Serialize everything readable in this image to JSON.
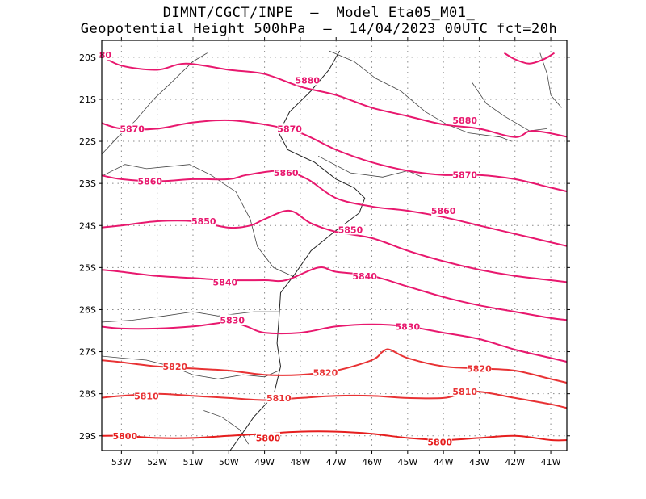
{
  "title_line1": "DIMNT/CGCT/INPE  –  Model Eta05_M01_",
  "title_line2": "Geopotential Height 500hPa  –  14/04/2023 00UTC fct=20h",
  "lat_ticks": [
    "20S",
    "21S",
    "22S",
    "23S",
    "24S",
    "25S",
    "26S",
    "27S",
    "28S",
    "29S"
  ],
  "lon_ticks": [
    "53W",
    "52W",
    "51W",
    "50W",
    "49W",
    "48W",
    "47W",
    "46W",
    "45W",
    "44W",
    "43W",
    "42W",
    "41W"
  ],
  "contours": [
    {
      "value": "5880",
      "color": "#e8186e",
      "pts": [
        [
          -53.6,
          19.95
        ],
        [
          -53,
          20.2
        ],
        [
          -52,
          20.3
        ],
        [
          -51.2,
          20.15
        ],
        [
          -50,
          20.3
        ],
        [
          -49,
          20.4
        ],
        [
          -48,
          20.7
        ],
        [
          -47,
          20.9
        ],
        [
          -46,
          21.2
        ],
        [
          -45,
          21.4
        ],
        [
          -44,
          21.6
        ],
        [
          -43,
          21.7
        ],
        [
          -42,
          21.9
        ],
        [
          -41.5,
          21.75
        ],
        [
          -40.5,
          21.9
        ]
      ]
    },
    {
      "value": "5870",
      "color": "#e8186e",
      "pts": [
        [
          -53.6,
          21.55
        ],
        [
          -53,
          21.7
        ],
        [
          -52,
          21.7
        ],
        [
          -51,
          21.55
        ],
        [
          -50,
          21.5
        ],
        [
          -49,
          21.6
        ],
        [
          -48,
          21.8
        ],
        [
          -47,
          22.2
        ],
        [
          -46,
          22.5
        ],
        [
          -45,
          22.7
        ],
        [
          -44,
          22.8
        ],
        [
          -43,
          22.8
        ],
        [
          -42,
          22.9
        ],
        [
          -41,
          23.1
        ],
        [
          -40.5,
          23.2
        ]
      ]
    },
    {
      "value": "5860",
      "color": "#e8186e",
      "pts": [
        [
          -53.6,
          22.8
        ],
        [
          -53,
          22.9
        ],
        [
          -52,
          22.95
        ],
        [
          -51,
          22.9
        ],
        [
          -50,
          22.9
        ],
        [
          -49.5,
          22.8
        ],
        [
          -48.5,
          22.7
        ],
        [
          -47.8,
          22.9
        ],
        [
          -47,
          23.35
        ],
        [
          -46,
          23.55
        ],
        [
          -45,
          23.65
        ],
        [
          -44,
          23.8
        ],
        [
          -43,
          24
        ],
        [
          -42,
          24.2
        ],
        [
          -41,
          24.4
        ],
        [
          -40.5,
          24.5
        ]
      ]
    },
    {
      "value": "5850",
      "color": "#e8186e",
      "pts": [
        [
          -53.6,
          24.05
        ],
        [
          -53,
          24
        ],
        [
          -52,
          23.9
        ],
        [
          -51,
          23.9
        ],
        [
          -50,
          24.05
        ],
        [
          -49.4,
          24
        ],
        [
          -49,
          23.85
        ],
        [
          -48.3,
          23.65
        ],
        [
          -47.7,
          23.95
        ],
        [
          -47,
          24.15
        ],
        [
          -46,
          24.3
        ],
        [
          -45,
          24.6
        ],
        [
          -44,
          24.85
        ],
        [
          -43,
          25.05
        ],
        [
          -42,
          25.2
        ],
        [
          -41,
          25.3
        ],
        [
          -40.5,
          25.35
        ]
      ]
    },
    {
      "value": "5840",
      "color": "#e8186e",
      "pts": [
        [
          -53.6,
          25.05
        ],
        [
          -53,
          25.1
        ],
        [
          -52,
          25.2
        ],
        [
          -51,
          25.25
        ],
        [
          -50,
          25.3
        ],
        [
          -49,
          25.3
        ],
        [
          -48.4,
          25.3
        ],
        [
          -47.5,
          25
        ],
        [
          -47,
          25.1
        ],
        [
          -46,
          25.2
        ],
        [
          -45,
          25.45
        ],
        [
          -44,
          25.7
        ],
        [
          -43,
          25.9
        ],
        [
          -42,
          26.05
        ],
        [
          -41,
          26.2
        ],
        [
          -40.5,
          26.25
        ]
      ]
    },
    {
      "value": "5830",
      "color": "#e8186e",
      "pts": [
        [
          -53.6,
          26.4
        ],
        [
          -53,
          26.45
        ],
        [
          -52,
          26.45
        ],
        [
          -51,
          26.4
        ],
        [
          -50,
          26.3
        ],
        [
          -49.5,
          26.4
        ],
        [
          -49,
          26.55
        ],
        [
          -48,
          26.55
        ],
        [
          -47,
          26.4
        ],
        [
          -46,
          26.35
        ],
        [
          -45,
          26.4
        ],
        [
          -44,
          26.55
        ],
        [
          -43,
          26.7
        ],
        [
          -42,
          26.95
        ],
        [
          -41,
          27.15
        ],
        [
          -40.5,
          27.25
        ]
      ]
    },
    {
      "value": "5820",
      "color": "#e83234",
      "pts": [
        [
          -53.6,
          27.2
        ],
        [
          -53,
          27.25
        ],
        [
          -52,
          27.35
        ],
        [
          -51,
          27.4
        ],
        [
          -50,
          27.45
        ],
        [
          -49,
          27.55
        ],
        [
          -48,
          27.55
        ],
        [
          -47,
          27.45
        ],
        [
          -46,
          27.2
        ],
        [
          -45.7,
          27
        ],
        [
          -45.5,
          26.95
        ],
        [
          -45,
          27.15
        ],
        [
          -44,
          27.35
        ],
        [
          -43,
          27.4
        ],
        [
          -42,
          27.45
        ],
        [
          -41,
          27.65
        ],
        [
          -40.5,
          27.75
        ]
      ]
    },
    {
      "value": "5810",
      "color": "#e83234",
      "pts": [
        [
          -53.6,
          28.1
        ],
        [
          -53,
          28.05
        ],
        [
          -52,
          28
        ],
        [
          -51,
          28.05
        ],
        [
          -50,
          28.1
        ],
        [
          -49,
          28.15
        ],
        [
          -48,
          28.1
        ],
        [
          -47,
          28.05
        ],
        [
          -46,
          28.05
        ],
        [
          -45,
          28.1
        ],
        [
          -44,
          28.1
        ],
        [
          -43.5,
          28
        ],
        [
          -43,
          27.95
        ],
        [
          -42,
          28.1
        ],
        [
          -41,
          28.25
        ],
        [
          -40.5,
          28.35
        ]
      ]
    },
    {
      "value": "5800",
      "color": "#e61e1e",
      "pts": [
        [
          -53.6,
          29
        ],
        [
          -53,
          29
        ],
        [
          -52,
          29.05
        ],
        [
          -51,
          29.05
        ],
        [
          -50,
          29
        ],
        [
          -49,
          28.95
        ],
        [
          -48,
          28.9
        ],
        [
          -47,
          28.9
        ],
        [
          -46,
          28.95
        ],
        [
          -45,
          29.05
        ],
        [
          -44,
          29.1
        ],
        [
          -43,
          29.05
        ],
        [
          -42,
          29
        ],
        [
          -41,
          29.1
        ],
        [
          -40.5,
          29.1
        ]
      ]
    },
    {
      "value": "",
      "color": "#e8186e",
      "pts": [
        [
          -42.3,
          19.9
        ],
        [
          -42,
          20.05
        ],
        [
          -41.6,
          20.15
        ],
        [
          -41.2,
          20.05
        ],
        [
          -40.9,
          19.9
        ]
      ]
    }
  ],
  "contour_labels": [
    {
      "text": "80",
      "color": "#e8186e",
      "lon": -53.45,
      "lat": 19.95
    },
    {
      "text": "5880",
      "color": "#e8186e",
      "lon": -47.8,
      "lat": 20.55
    },
    {
      "text": "5880",
      "color": "#e8186e",
      "lon": -43.4,
      "lat": 21.5
    },
    {
      "text": "5870",
      "color": "#e8186e",
      "lon": -52.7,
      "lat": 21.7
    },
    {
      "text": "5870",
      "color": "#e8186e",
      "lon": -48.3,
      "lat": 21.7
    },
    {
      "text": "5870",
      "color": "#e8186e",
      "lon": -43.4,
      "lat": 22.8
    },
    {
      "text": "5860",
      "color": "#e8186e",
      "lon": -52.2,
      "lat": 22.95
    },
    {
      "text": "5860",
      "color": "#e8186e",
      "lon": -48.4,
      "lat": 22.75
    },
    {
      "text": "5860",
      "color": "#e8186e",
      "lon": -44,
      "lat": 23.65
    },
    {
      "text": "5850",
      "color": "#e8186e",
      "lon": -50.7,
      "lat": 23.9
    },
    {
      "text": "5850",
      "color": "#e8186e",
      "lon": -46.6,
      "lat": 24.1
    },
    {
      "text": "5840",
      "color": "#e8186e",
      "lon": -50.1,
      "lat": 25.35
    },
    {
      "text": "5840",
      "color": "#e8186e",
      "lon": -46.2,
      "lat": 25.2
    },
    {
      "text": "5830",
      "color": "#e8186e",
      "lon": -49.9,
      "lat": 26.25
    },
    {
      "text": "5830",
      "color": "#e8186e",
      "lon": -45,
      "lat": 26.4
    },
    {
      "text": "5820",
      "color": "#e83234",
      "lon": -51.5,
      "lat": 27.35
    },
    {
      "text": "5820",
      "color": "#e83234",
      "lon": -47.3,
      "lat": 27.5
    },
    {
      "text": "5820",
      "color": "#e83234",
      "lon": -43,
      "lat": 27.4
    },
    {
      "text": "5810",
      "color": "#e83234",
      "lon": -52.3,
      "lat": 28.05
    },
    {
      "text": "5810",
      "color": "#e83234",
      "lon": -48.6,
      "lat": 28.1
    },
    {
      "text": "5810",
      "color": "#e83234",
      "lon": -43.4,
      "lat": 27.95
    },
    {
      "text": "5800",
      "color": "#e61e1e",
      "lon": -52.9,
      "lat": 29
    },
    {
      "text": "5800",
      "color": "#e61e1e",
      "lon": -48.9,
      "lat": 29.05
    },
    {
      "text": "5800",
      "color": "#e61e1e",
      "lon": -44.1,
      "lat": 29.15
    }
  ],
  "coastline": [
    [
      -46.9,
      19.85
    ],
    [
      -47.2,
      20.3
    ],
    [
      -47.7,
      20.8
    ],
    [
      -48.3,
      21.3
    ],
    [
      -48.6,
      21.8
    ],
    [
      -48.35,
      22.2
    ],
    [
      -47.6,
      22.5
    ],
    [
      -47,
      22.9
    ],
    [
      -46.5,
      23.1
    ],
    [
      -46.2,
      23.35
    ],
    [
      -46.35,
      23.7
    ],
    [
      -47.05,
      24.15
    ],
    [
      -47.7,
      24.6
    ],
    [
      -48.15,
      25.15
    ],
    [
      -48.55,
      25.6
    ],
    [
      -48.6,
      26.25
    ],
    [
      -48.65,
      26.8
    ],
    [
      -48.55,
      27.35
    ],
    [
      -48.75,
      28.05
    ],
    [
      -49.3,
      28.55
    ],
    [
      -49.75,
      29.1
    ],
    [
      -50.05,
      29.45
    ]
  ],
  "borders": [
    [
      [
        -53.6,
        22.35
      ],
      [
        -53.1,
        21.9
      ],
      [
        -52.6,
        21.5
      ],
      [
        -52.1,
        21.0
      ],
      [
        -51.6,
        20.6
      ],
      [
        -51.0,
        20.1
      ],
      [
        -50.6,
        19.9
      ]
    ],
    [
      [
        -53.6,
        22.85
      ],
      [
        -52.9,
        22.55
      ],
      [
        -52.3,
        22.65
      ],
      [
        -51.7,
        22.6
      ],
      [
        -51.1,
        22.55
      ],
      [
        -50.5,
        22.8
      ],
      [
        -49.8,
        23.2
      ],
      [
        -49.4,
        23.85
      ],
      [
        -49.2,
        24.5
      ],
      [
        -48.75,
        25.0
      ],
      [
        -48.1,
        25.25
      ]
    ],
    [
      [
        -53.6,
        26.3
      ],
      [
        -52.7,
        26.25
      ],
      [
        -51.8,
        26.15
      ],
      [
        -51.0,
        26.05
      ],
      [
        -50.3,
        26.15
      ],
      [
        -49.3,
        26.05
      ],
      [
        -48.6,
        26.05
      ]
    ],
    [
      [
        -53.6,
        27.1
      ],
      [
        -53.0,
        27.15
      ],
      [
        -52.3,
        27.2
      ],
      [
        -51.6,
        27.35
      ],
      [
        -51.0,
        27.55
      ],
      [
        -50.3,
        27.65
      ],
      [
        -49.6,
        27.55
      ],
      [
        -49.0,
        27.6
      ],
      [
        -48.6,
        27.45
      ]
    ],
    [
      [
        -50.7,
        28.4
      ],
      [
        -50.2,
        28.55
      ],
      [
        -49.7,
        28.85
      ],
      [
        -49.45,
        29.2
      ]
    ],
    [
      [
        -47.2,
        19.85
      ],
      [
        -46.5,
        20.1
      ],
      [
        -45.9,
        20.5
      ],
      [
        -45.2,
        20.8
      ],
      [
        -44.5,
        21.3
      ],
      [
        -43.9,
        21.6
      ],
      [
        -43.3,
        21.8
      ],
      [
        -42.4,
        21.9
      ],
      [
        -42.1,
        22.0
      ]
    ],
    [
      [
        -47.5,
        22.35
      ],
      [
        -46.6,
        22.75
      ],
      [
        -45.7,
        22.85
      ],
      [
        -45.0,
        22.7
      ],
      [
        -44.6,
        22.85
      ]
    ],
    [
      [
        -43.2,
        20.6
      ],
      [
        -42.8,
        21.1
      ],
      [
        -42.3,
        21.4
      ],
      [
        -41.6,
        21.75
      ],
      [
        -41.1,
        21.7
      ]
    ],
    [
      [
        -41.3,
        19.9
      ],
      [
        -41.1,
        20.4
      ],
      [
        -41.0,
        20.9
      ],
      [
        -40.7,
        21.2
      ]
    ]
  ]
}
